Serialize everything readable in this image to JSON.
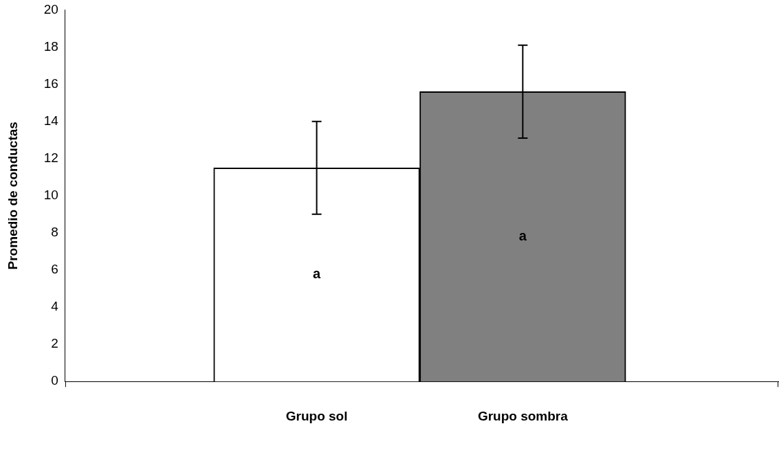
{
  "chart_data": {
    "type": "bar",
    "ylabel": "Promedio de conductas",
    "categories": [
      "Grupo sol",
      "Grupo sombra"
    ],
    "values": [
      11.5,
      15.6
    ],
    "colors": [
      "#ffffff",
      "#808080"
    ],
    "errors": [
      2.5,
      2.5
    ],
    "ylim": [
      0,
      20
    ],
    "yticks": [
      0,
      2,
      4,
      6,
      8,
      10,
      12,
      14,
      16,
      18,
      20
    ],
    "grid": false,
    "legend": false,
    "annotations": [
      "a",
      "a"
    ]
  }
}
